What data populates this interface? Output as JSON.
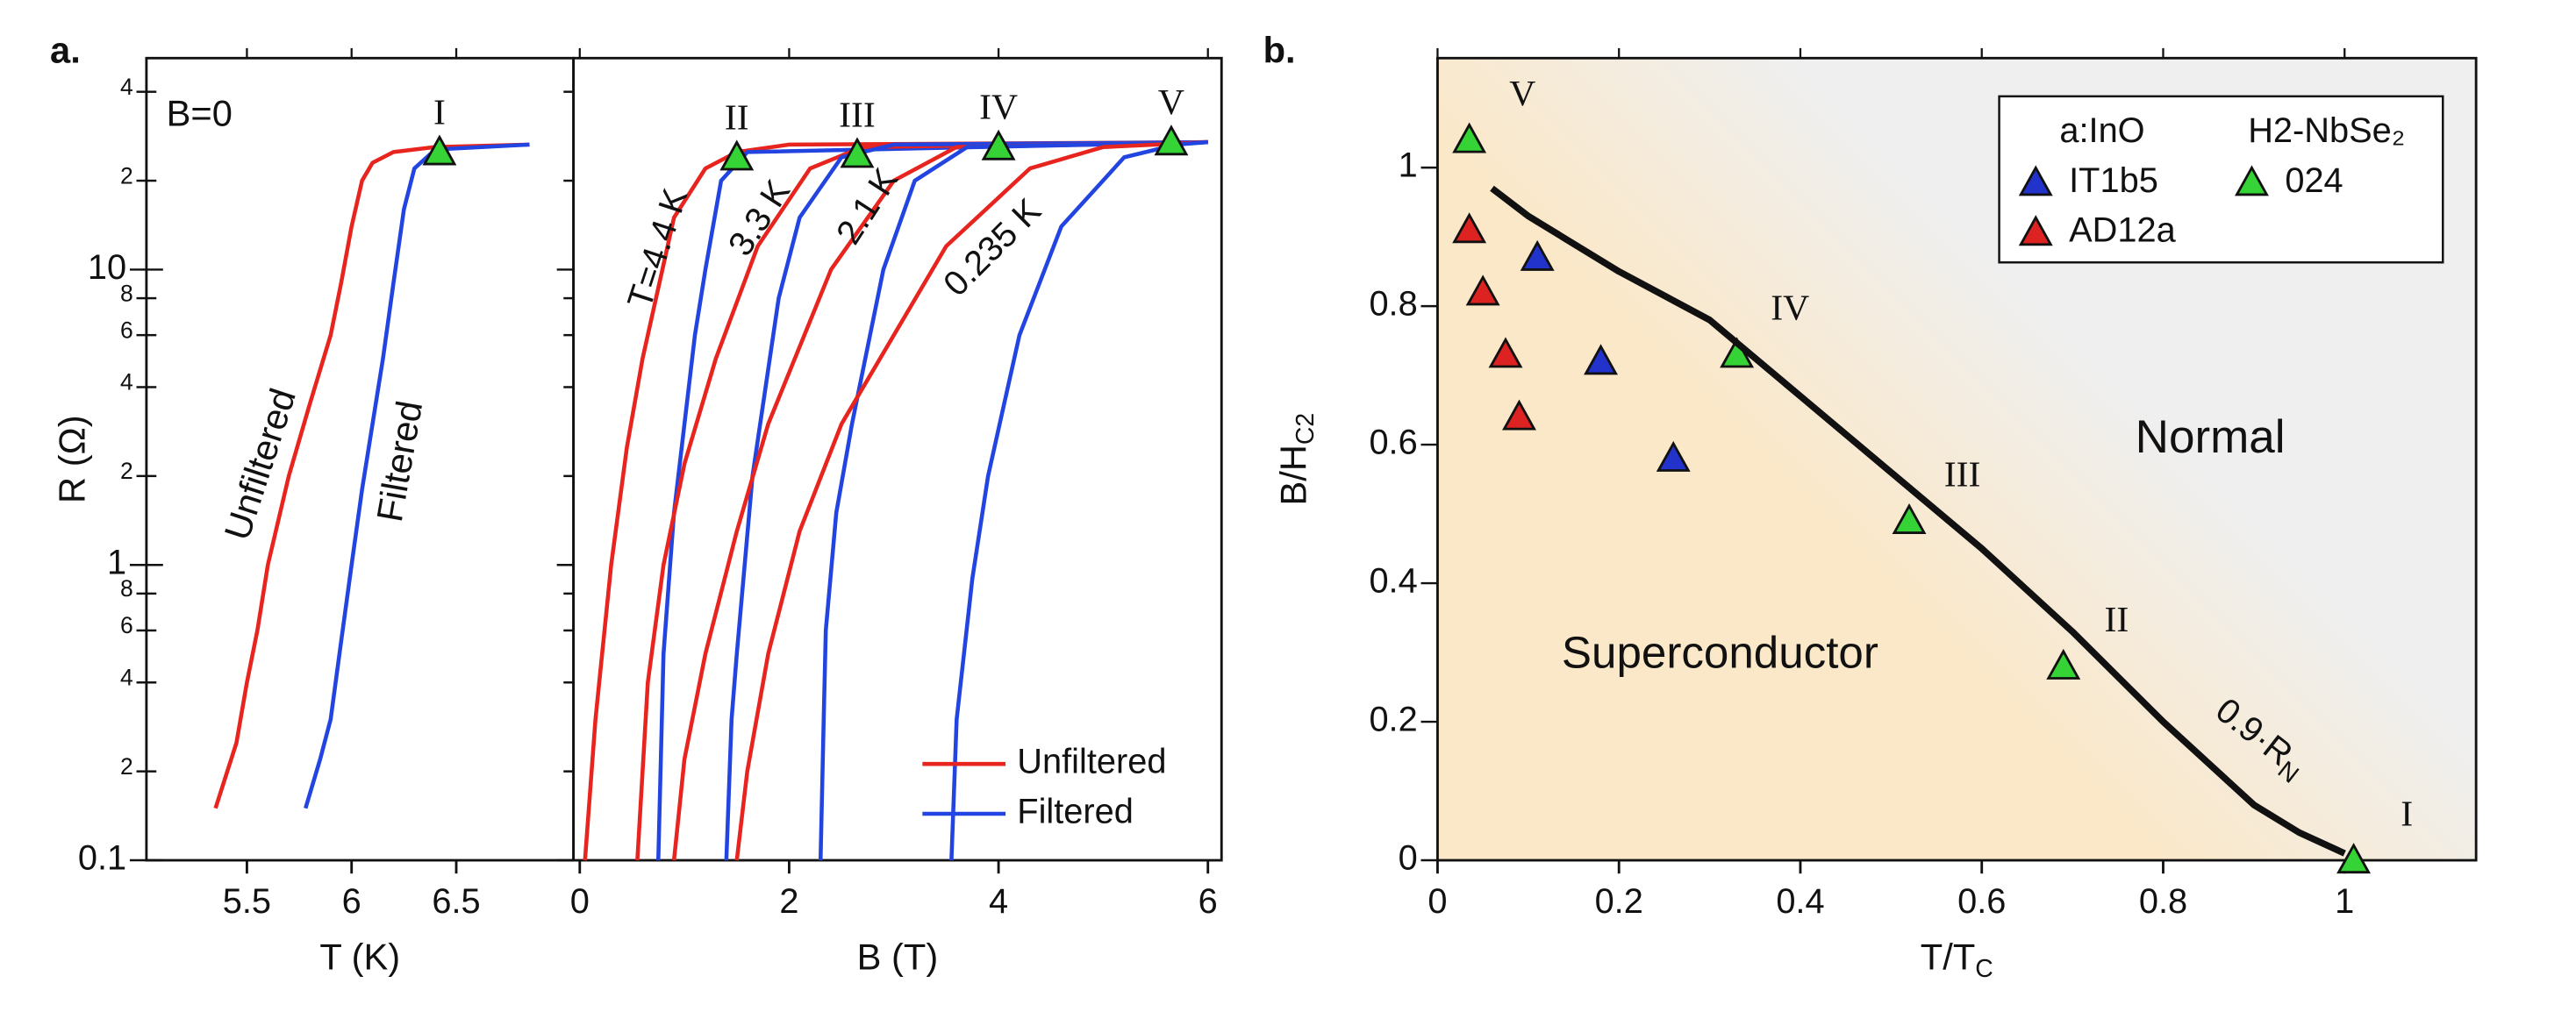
{
  "chart_data": [
    {
      "type": "line",
      "panel_label": "a.",
      "xlabel": "T (K)",
      "ylabel": "R (Ω)",
      "log_y": true,
      "xlim": [
        5.02,
        7.06
      ],
      "ylim": [
        0.1,
        52
      ],
      "xticks": [
        5.5,
        6,
        6.5
      ],
      "yticks": [
        0.1,
        {
          "value": 0.2,
          "label": "2"
        },
        {
          "value": 0.4,
          "label": "4"
        },
        {
          "value": 0.6,
          "label": "6"
        },
        {
          "value": 0.8,
          "label": "8"
        },
        1,
        2,
        4,
        6,
        8,
        10,
        {
          "value": 20,
          "label": "2"
        },
        {
          "value": 40,
          "label": "4"
        }
      ],
      "annotations": [
        "B=0",
        "Unfiltered",
        "Filtered"
      ],
      "series": [
        {
          "color": "#e8241f",
          "x": [
            5.35,
            5.45,
            5.5,
            5.55,
            5.6,
            5.7,
            5.8,
            5.9,
            5.95,
            6.0,
            6.05,
            6.1,
            6.2,
            6.4,
            6.85
          ],
          "values": [
            0.15,
            0.25,
            0.4,
            0.6,
            1,
            2,
            3.5,
            6,
            9,
            14,
            20,
            23,
            25,
            26,
            26.5
          ]
        },
        {
          "color": "#2244e0",
          "x": [
            5.78,
            5.85,
            5.9,
            5.95,
            6.0,
            6.05,
            6.1,
            6.15,
            6.2,
            6.25,
            6.3,
            6.4,
            6.85
          ],
          "values": [
            0.15,
            0.22,
            0.3,
            0.55,
            1,
            1.8,
            3,
            5,
            9,
            16,
            22,
            25.5,
            26.5
          ]
        },
        {
          "marker": "triangle",
          "color": "#35d335",
          "x": [
            6.42
          ],
          "values": [
            25
          ],
          "point_labels": [
            "I"
          ]
        }
      ]
    },
    {
      "type": "line",
      "xlabel": "B (T)",
      "xlim": [
        -0.06,
        6.13
      ],
      "xticks": [
        0,
        2,
        4,
        6
      ],
      "annotations": [
        "T=4.4 K",
        "3.3 K",
        "2.1 K",
        "0.235 K"
      ],
      "legend": [
        {
          "name": "Unfiltered",
          "color": "#e8241f"
        },
        {
          "name": "Filtered",
          "color": "#2244e0"
        }
      ],
      "series": [
        {
          "color": "#e8241f",
          "x": [
            0.05,
            0.15,
            0.3,
            0.45,
            0.6,
            0.9,
            1.2,
            1.5,
            2.0,
            6.0
          ],
          "values": [
            0.1,
            0.3,
            1,
            2.5,
            5,
            15,
            22,
            25,
            26.5,
            27
          ]
        },
        {
          "color": "#2244e0",
          "x": [
            0.75,
            0.8,
            0.9,
            1.0,
            1.1,
            1.2,
            1.35,
            1.6,
            6.0
          ],
          "values": [
            0.1,
            0.5,
            1.5,
            3,
            6,
            10,
            20,
            25,
            27
          ]
        },
        {
          "color": "#e8241f",
          "x": [
            0.55,
            0.65,
            0.8,
            1.0,
            1.3,
            1.7,
            2.2,
            2.7,
            6.0
          ],
          "values": [
            0.1,
            0.4,
            1,
            2.2,
            5,
            12,
            22,
            26,
            27
          ]
        },
        {
          "color": "#2244e0",
          "x": [
            1.4,
            1.45,
            1.5,
            1.65,
            1.9,
            2.1,
            2.5,
            3.0,
            6.0
          ],
          "values": [
            0.1,
            0.3,
            0.5,
            2,
            8,
            15,
            24,
            26.5,
            27
          ]
        },
        {
          "color": "#e8241f",
          "x": [
            0.9,
            1.0,
            1.2,
            1.5,
            1.8,
            2.4,
            3.0,
            3.6,
            6.0
          ],
          "values": [
            0.1,
            0.22,
            0.5,
            1.3,
            3,
            10,
            20,
            26,
            27
          ]
        },
        {
          "color": "#2244e0",
          "x": [
            2.3,
            2.33,
            2.35,
            2.45,
            2.6,
            2.9,
            3.2,
            3.7,
            6.0
          ],
          "values": [
            0.1,
            0.3,
            0.6,
            1.5,
            3,
            10,
            20,
            26,
            27
          ]
        },
        {
          "color": "#e8241f",
          "x": [
            1.5,
            1.6,
            1.8,
            2.1,
            2.5,
            3.0,
            3.5,
            4.3,
            5.0,
            6.0
          ],
          "values": [
            0.1,
            0.2,
            0.5,
            1.3,
            3,
            6,
            12,
            22,
            26,
            27
          ]
        },
        {
          "color": "#2244e0",
          "x": [
            3.55,
            3.6,
            3.75,
            3.9,
            4.2,
            4.6,
            5.2,
            5.7,
            6.0
          ],
          "values": [
            0.1,
            0.3,
            0.9,
            2,
            6,
            14,
            24,
            26.5,
            27
          ]
        },
        {
          "marker": "triangle",
          "color": "#35d335",
          "x": [
            1.5,
            2.65,
            4.0,
            5.65
          ],
          "values": [
            24,
            24.5,
            26,
            27
          ],
          "point_labels": [
            "II",
            "III",
            "IV",
            "V"
          ]
        }
      ]
    },
    {
      "type": "scatter",
      "panel_label": "b.",
      "xlabel": "T/T",
      "xlabel_sub": "C",
      "ylabel": "B/H",
      "ylabel_sub": "C2",
      "xlim": [
        0,
        1.145
      ],
      "ylim": [
        0,
        1.158
      ],
      "xticks": [
        0,
        0.2,
        0.4,
        0.6,
        0.8,
        1
      ],
      "yticks": [
        0,
        0.2,
        0.4,
        0.6,
        0.8,
        1
      ],
      "legend_headers": [
        "a:InO",
        "H2-NbSe₂"
      ],
      "regions": [
        "Normal",
        "Superconductor"
      ],
      "line_label": "0.9·R",
      "line_label_sub": "N",
      "series": [
        {
          "name": "IT1b5",
          "color": "#2233cc",
          "x": [
            0.11,
            0.18,
            0.26
          ],
          "values": [
            0.87,
            0.72,
            0.58
          ]
        },
        {
          "name": "AD12a",
          "color": "#dd2222",
          "x": [
            0.035,
            0.05,
            0.075,
            0.09
          ],
          "values": [
            0.91,
            0.82,
            0.73,
            0.64
          ]
        },
        {
          "name": "024",
          "color": "#35d335",
          "x": [
            0.035,
            0.33,
            0.52,
            0.69,
            1.01
          ],
          "values": [
            1.04,
            0.73,
            0.49,
            0.28,
            0.0
          ],
          "point_labels": [
            "V",
            "IV",
            "III",
            "II",
            "I"
          ]
        },
        {
          "type": "line",
          "color": "#111111",
          "x": [
            0.06,
            0.1,
            0.2,
            0.3,
            0.4,
            0.5,
            0.6,
            0.7,
            0.8,
            0.9,
            0.95,
            1.0
          ],
          "values": [
            0.97,
            0.93,
            0.85,
            0.78,
            0.67,
            0.56,
            0.45,
            0.33,
            0.2,
            0.08,
            0.04,
            0.01
          ]
        }
      ]
    }
  ]
}
